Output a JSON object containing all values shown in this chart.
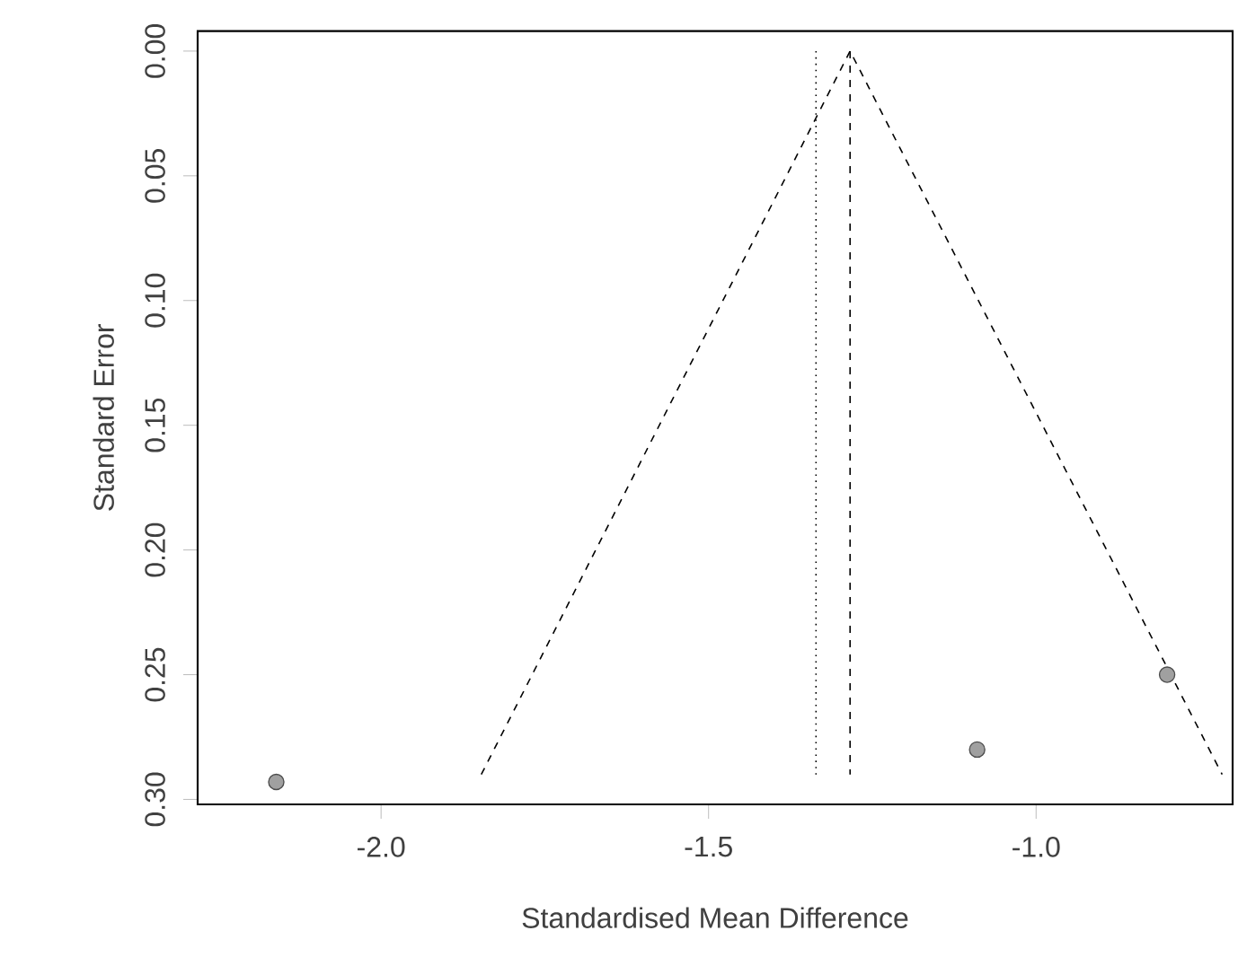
{
  "chart_data": {
    "type": "scatter",
    "xlabel": "Standardised Mean Difference",
    "ylabel": "Standard Error",
    "xlim": [
      -2.28,
      -0.7
    ],
    "ylim": [
      0.302,
      -0.008
    ],
    "xticks": [
      {
        "value": -2.0,
        "label": "-2.0"
      },
      {
        "value": -1.5,
        "label": "-1.5"
      },
      {
        "value": -1.0,
        "label": "-1.0"
      }
    ],
    "yticks": [
      {
        "value": 0,
        "label": "0.00"
      },
      {
        "value": 0.05,
        "label": "0.05"
      },
      {
        "value": 0.1,
        "label": "0.10"
      },
      {
        "value": 0.15,
        "label": "0.15"
      },
      {
        "value": 0.2,
        "label": "0.20"
      },
      {
        "value": 0.25,
        "label": "0.25"
      },
      {
        "value": 0.3,
        "label": "0.30"
      }
    ],
    "grid": false,
    "series": [
      {
        "marker": "circle",
        "color": "#a0a0a0",
        "x": [
          -2.16,
          -1.09,
          -0.8
        ],
        "values": [
          0.293,
          0.28,
          0.25
        ]
      },
      {
        "type": "line",
        "color": "#000000",
        "line_style": "dashed",
        "marker": "none",
        "x": [
          -1.847,
          -1.284,
          -0.716
        ],
        "values": [
          0.29,
          0,
          0.29
        ]
      }
    ],
    "ref_lines": [
      {
        "axis": "x",
        "value": -1.284,
        "line_style": "dashed",
        "color": "#000000"
      },
      {
        "axis": "x",
        "value": -1.336,
        "line_style": "dotted",
        "color": "#000000"
      }
    ]
  }
}
